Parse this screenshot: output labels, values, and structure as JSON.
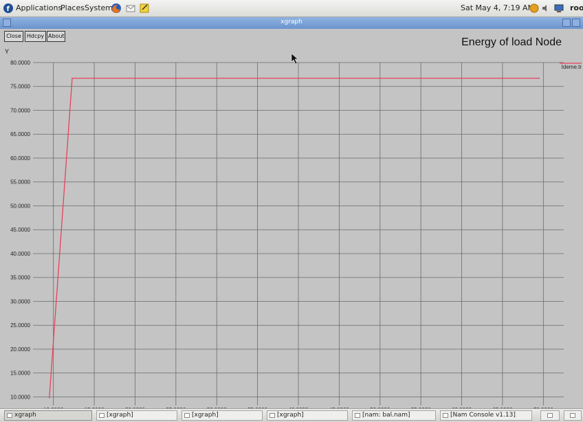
{
  "top_panel": {
    "menus": [
      "Applications",
      "Places",
      "System"
    ],
    "clock": "Sat May  4,  7:19 AM",
    "user": "roo"
  },
  "window": {
    "title": "xgraph"
  },
  "xgraph": {
    "buttons": [
      "Close",
      "Hdcpy",
      "About"
    ]
  },
  "chart_data": {
    "type": "line",
    "title": "Energy of load Node",
    "ylabel": "Y",
    "xlabel": "",
    "xlim": [
      7.5,
      72.5
    ],
    "ylim": [
      8.2,
      80.0
    ],
    "x_ticks": [
      10,
      15,
      20,
      25,
      30,
      35,
      40,
      45,
      50,
      55,
      60,
      65,
      70
    ],
    "x_tick_labels": [
      "10.0000",
      "15.0000",
      "20.0000",
      "25.0000",
      "30.0000",
      "35.0000",
      "40.0000",
      "45.0000",
      "50.0000",
      "55.0000",
      "60.0000",
      "65.0000",
      "70.0000"
    ],
    "y_ticks": [
      10,
      15,
      20,
      25,
      30,
      35,
      40,
      45,
      50,
      55,
      60,
      65,
      70,
      75,
      80
    ],
    "y_tick_labels": [
      "10.0000",
      "15.0000",
      "20.0000",
      "25.0000",
      "30.0000",
      "35.0000",
      "40.0000",
      "45.0000",
      "50.0000",
      "55.0000",
      "60.0000",
      "65.0000",
      "70.0000",
      "75.0000",
      "80.0000"
    ],
    "grid": true,
    "legend": "top-right",
    "series": [
      {
        "name": "Ideme.tr",
        "color": "#e8405a",
        "x": [
          9.5,
          12.3,
          69.5
        ],
        "y": [
          9.8,
          76.7,
          76.7
        ]
      }
    ]
  },
  "taskbar": {
    "tasks": [
      "xgraph",
      "[xgraph]",
      "[xgraph]",
      "[xgraph]",
      "[nam: bal.nam]",
      "[Nam Console v1.13]"
    ]
  }
}
